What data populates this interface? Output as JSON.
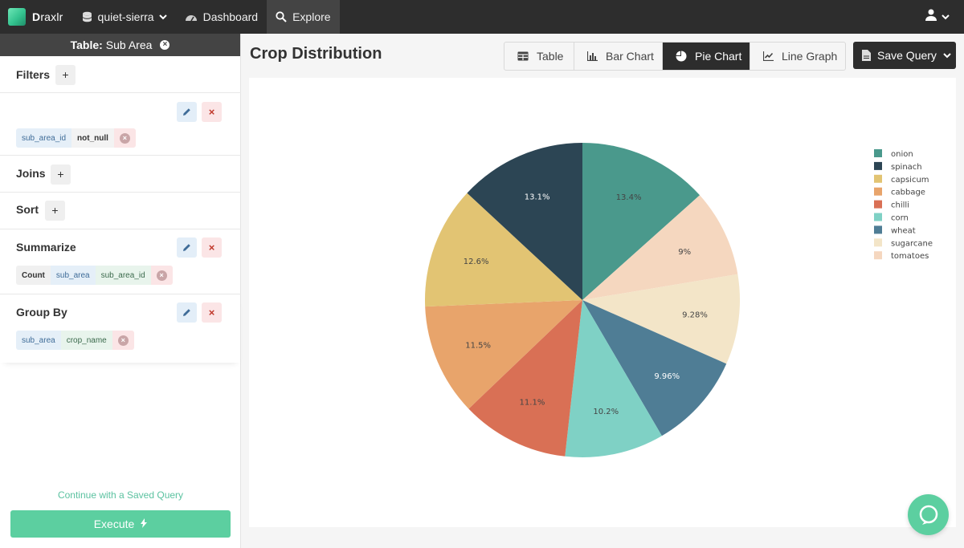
{
  "nav": {
    "brand_bold": "D",
    "brand_rest": "raxlr",
    "database": "quiet-sierra",
    "dashboard": "Dashboard",
    "explore": "Explore"
  },
  "left": {
    "table_label": "Table:",
    "table_name": "Sub Area",
    "filters": {
      "title": "Filters",
      "chips": [
        "sub_area_id",
        "not_null"
      ]
    },
    "joins": {
      "title": "Joins"
    },
    "sort": {
      "title": "Sort"
    },
    "summarize": {
      "title": "Summarize",
      "chips": [
        "Count",
        "sub_area",
        "sub_area_id"
      ]
    },
    "group_by": {
      "title": "Group By",
      "chips": [
        "sub_area",
        "crop_name"
      ]
    },
    "saved_query_link": "Continue with a Saved Query",
    "execute_label": "Execute"
  },
  "main": {
    "title": "Crop Distribution",
    "tabs": [
      "Table",
      "Bar Chart",
      "Pie Chart",
      "Line Graph"
    ],
    "active_tab": "Pie Chart",
    "save_query": "Save Query"
  },
  "colors": {
    "accent": "#5ccfa0",
    "dark": "#2d2d2d"
  },
  "chart_data": {
    "type": "pie",
    "title": "",
    "legend_position": "top-right",
    "slices": [
      {
        "name": "onion",
        "value": 13.4,
        "label": "13.4%",
        "color": "#4a998c"
      },
      {
        "name": "tomatoes",
        "value": 9.0,
        "label": "9%",
        "color": "#f5d7bf"
      },
      {
        "name": "sugarcane",
        "value": 9.28,
        "label": "9.28%",
        "color": "#f3e5c8"
      },
      {
        "name": "wheat",
        "value": 9.96,
        "label": "9.96%",
        "color": "#4f7d95"
      },
      {
        "name": "corn",
        "value": 10.2,
        "label": "10.2%",
        "color": "#7fd1c5"
      },
      {
        "name": "chilli",
        "value": 11.1,
        "label": "11.1%",
        "color": "#d97055"
      },
      {
        "name": "cabbage",
        "value": 11.5,
        "label": "11.5%",
        "color": "#e8a46b"
      },
      {
        "name": "capsicum",
        "value": 12.6,
        "label": "12.6%",
        "color": "#e2c473"
      },
      {
        "name": "spinach",
        "value": 13.1,
        "label": "13.1%",
        "color": "#2c4554"
      }
    ],
    "legend": [
      "onion",
      "spinach",
      "capsicum",
      "cabbage",
      "chilli",
      "corn",
      "wheat",
      "sugarcane",
      "tomatoes"
    ]
  }
}
